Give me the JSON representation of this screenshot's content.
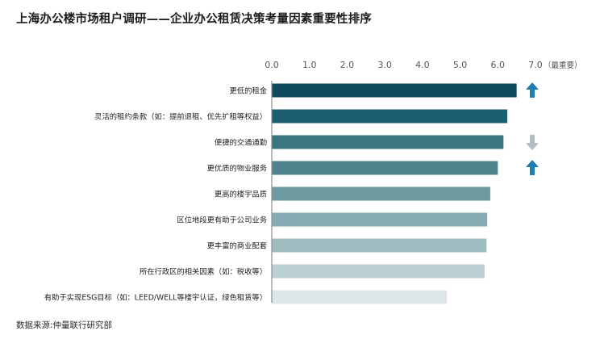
{
  "chart_data": {
    "type": "bar",
    "orientation": "horizontal",
    "title": "上海办公楼市场租户调研——企业办公租赁决策考量因素重要性排序",
    "categories": [
      "更低的租金",
      "灵活的租约条款（如：提前退租、优先扩租等权益）",
      "便捷的交通通勤",
      "更优质的物业服务",
      "更高的楼宇品质",
      "区位地段更有助于公司业务",
      "更丰富的商业配套",
      "所在行政区的相关因素（如：税收等）",
      "有助于实现ESG目标（如：LEED/WELL等楼宇认证，绿色租赁等）"
    ],
    "values": [
      6.5,
      6.25,
      6.15,
      6.0,
      5.8,
      5.72,
      5.7,
      5.65,
      4.65
    ],
    "bar_colors": [
      "#0d4a5c",
      "#1c5f6f",
      "#3b7580",
      "#4f848d",
      "#6e9aa2",
      "#86abb2",
      "#9fbcc1",
      "#bccfd2",
      "#dde6e8"
    ],
    "xlim": [
      0,
      7
    ],
    "xticks": [
      "0.0",
      "1.0",
      "2.0",
      "3.0",
      "4.0",
      "5.0",
      "6.0",
      "7.0"
    ],
    "xunit_label": "（最重要）",
    "trend_indicators": [
      {
        "category_index": 0,
        "direction": "up",
        "color": "#1f7fb0"
      },
      {
        "category_index": 2,
        "direction": "down",
        "color": "#b4bec2"
      },
      {
        "category_index": 3,
        "direction": "up",
        "color": "#1f7fb0"
      }
    ],
    "axis_color": "#8e8e8e",
    "source": "数据来源:仲量联行研究部"
  }
}
